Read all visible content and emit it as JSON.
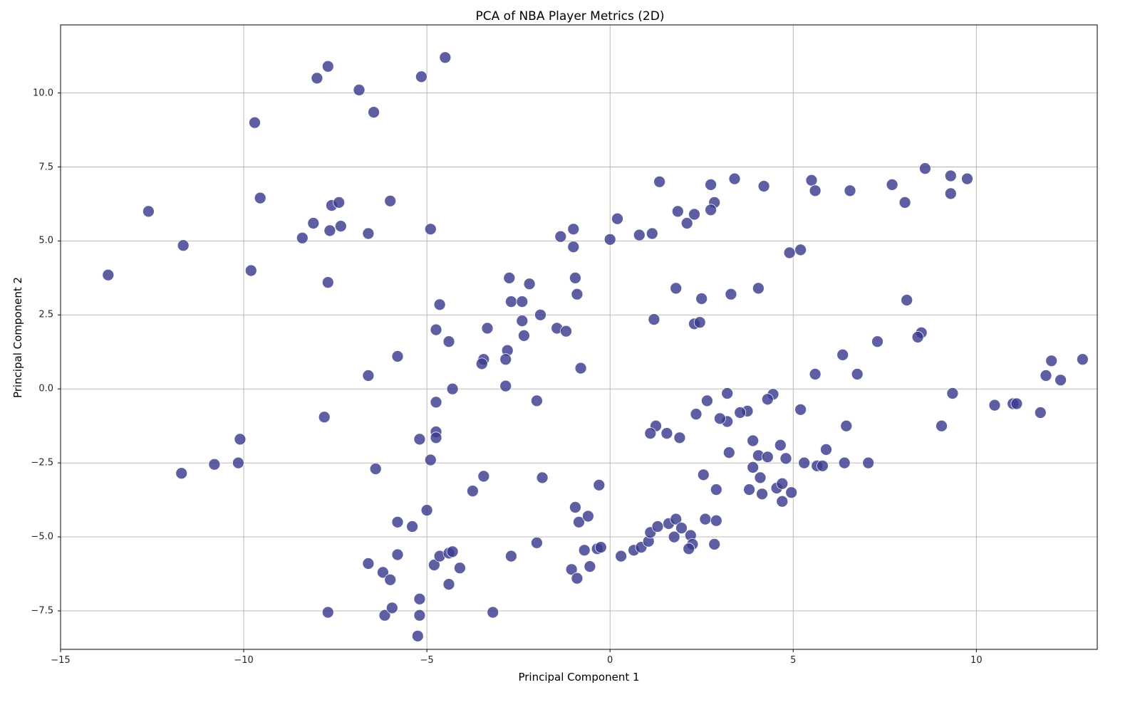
{
  "chart_data": {
    "type": "scatter",
    "title": "PCA of NBA Player Metrics (2D)",
    "xlabel": "Principal Component 1",
    "ylabel": "Principal Component 2",
    "xlim": [
      -15.0,
      13.3
    ],
    "ylim": [
      -8.8,
      12.3
    ],
    "grid": true,
    "legend": "none",
    "x_ticks": [
      {
        "value": -15,
        "label": "−15"
      },
      {
        "value": -10,
        "label": "−10"
      },
      {
        "value": -5,
        "label": "−5"
      },
      {
        "value": 0,
        "label": "0"
      },
      {
        "value": 5,
        "label": "5"
      },
      {
        "value": 10,
        "label": "10"
      }
    ],
    "y_ticks": [
      {
        "value": -7.5,
        "label": "−7.5"
      },
      {
        "value": -5.0,
        "label": "−5.0"
      },
      {
        "value": -2.5,
        "label": "−2.5"
      },
      {
        "value": 0.0,
        "label": "0.0"
      },
      {
        "value": 2.5,
        "label": "2.5"
      },
      {
        "value": 5.0,
        "label": "5.0"
      },
      {
        "value": 7.5,
        "label": "7.5"
      },
      {
        "value": 10.0,
        "label": "10.0"
      }
    ],
    "marker": {
      "shape": "circle",
      "radius_px": 8,
      "fill": "#3a3a8f",
      "fill_opacity": 0.82,
      "edge": "#ffffff",
      "edge_width": 0.8
    },
    "colors": {
      "grid": "#b2b2b2",
      "spine": "#1a1a1a",
      "background": "#ffffff"
    },
    "points": [
      [
        -7.7,
        10.9
      ],
      [
        -8.0,
        10.5
      ],
      [
        -6.85,
        10.1
      ],
      [
        -6.45,
        9.35
      ],
      [
        -9.7,
        9.0
      ],
      [
        -9.55,
        6.45
      ],
      [
        -12.6,
        6.0
      ],
      [
        -7.6,
        6.2
      ],
      [
        -7.4,
        6.3
      ],
      [
        -6.0,
        6.35
      ],
      [
        -8.4,
        5.1
      ],
      [
        -8.1,
        5.6
      ],
      [
        -7.65,
        5.35
      ],
      [
        -7.35,
        5.5
      ],
      [
        -6.6,
        5.25
      ],
      [
        -11.65,
        4.85
      ],
      [
        -13.7,
        3.85
      ],
      [
        -9.8,
        4.0
      ],
      [
        -7.7,
        3.6
      ],
      [
        -5.8,
        1.1
      ],
      [
        -6.6,
        0.45
      ],
      [
        -7.8,
        -0.95
      ],
      [
        -10.1,
        -1.7
      ],
      [
        -4.5,
        11.2
      ],
      [
        -5.15,
        10.55
      ],
      [
        -4.9,
        5.4
      ],
      [
        -1.0,
        5.4
      ],
      [
        0.2,
        5.75
      ],
      [
        1.35,
        7.0
      ],
      [
        2.75,
        6.9
      ],
      [
        3.4,
        7.1
      ],
      [
        2.85,
        6.3
      ],
      [
        1.85,
        6.0
      ],
      [
        2.3,
        5.9
      ],
      [
        2.75,
        6.05
      ],
      [
        2.1,
        5.6
      ],
      [
        4.2,
        6.85
      ],
      [
        5.5,
        7.05
      ],
      [
        5.6,
        6.7
      ],
      [
        6.55,
        6.7
      ],
      [
        7.7,
        6.9
      ],
      [
        8.05,
        6.3
      ],
      [
        8.6,
        7.45
      ],
      [
        9.3,
        7.2
      ],
      [
        9.3,
        6.6
      ],
      [
        9.75,
        7.1
      ],
      [
        -11.7,
        -2.85
      ],
      [
        -10.8,
        -2.55
      ],
      [
        -10.15,
        -2.5
      ],
      [
        -1.35,
        5.15
      ],
      [
        0.0,
        5.05
      ],
      [
        0.8,
        5.2
      ],
      [
        1.15,
        5.25
      ],
      [
        -1.0,
        4.8
      ],
      [
        -2.75,
        3.75
      ],
      [
        -2.2,
        3.55
      ],
      [
        -0.95,
        3.75
      ],
      [
        -0.9,
        3.2
      ],
      [
        -4.65,
        2.85
      ],
      [
        -2.7,
        2.95
      ],
      [
        -2.4,
        2.95
      ],
      [
        -1.9,
        2.5
      ],
      [
        -2.4,
        2.3
      ],
      [
        -4.75,
        2.0
      ],
      [
        -3.35,
        2.05
      ],
      [
        -1.45,
        2.05
      ],
      [
        -1.2,
        1.95
      ],
      [
        -2.35,
        1.8
      ],
      [
        -4.4,
        1.6
      ],
      [
        -2.8,
        1.3
      ],
      [
        -3.45,
        1.0
      ],
      [
        -3.5,
        0.85
      ],
      [
        -2.85,
        1.0
      ],
      [
        -0.8,
        0.7
      ],
      [
        -4.3,
        0.0
      ],
      [
        -2.85,
        0.1
      ],
      [
        -4.75,
        -0.45
      ],
      [
        -2.0,
        -0.4
      ],
      [
        1.2,
        2.35
      ],
      [
        1.8,
        3.4
      ],
      [
        2.3,
        2.2
      ],
      [
        2.45,
        2.25
      ],
      [
        2.5,
        3.05
      ],
      [
        3.3,
        3.2
      ],
      [
        4.9,
        4.6
      ],
      [
        5.2,
        4.7
      ],
      [
        4.05,
        3.4
      ],
      [
        8.1,
        3.0
      ],
      [
        8.5,
        1.9
      ],
      [
        8.4,
        1.75
      ],
      [
        7.3,
        1.6
      ],
      [
        6.35,
        1.15
      ],
      [
        5.6,
        0.5
      ],
      [
        6.75,
        0.5
      ],
      [
        12.05,
        0.95
      ],
      [
        12.9,
        1.0
      ],
      [
        11.9,
        0.45
      ],
      [
        12.3,
        0.3
      ],
      [
        4.45,
        -0.18
      ],
      [
        4.3,
        -0.35
      ],
      [
        5.2,
        -0.7
      ],
      [
        9.35,
        -0.15
      ],
      [
        6.45,
        -1.25
      ],
      [
        9.05,
        -1.25
      ],
      [
        10.5,
        -0.55
      ],
      [
        11.0,
        -0.5
      ],
      [
        11.1,
        -0.5
      ],
      [
        11.75,
        -0.8
      ],
      [
        3.2,
        -0.15
      ],
      [
        2.65,
        -0.4
      ],
      [
        3.75,
        -0.75
      ],
      [
        3.55,
        -0.8
      ],
      [
        2.35,
        -0.85
      ],
      [
        3.2,
        -1.1
      ],
      [
        3.0,
        -1.0
      ],
      [
        1.25,
        -1.25
      ],
      [
        1.1,
        -1.5
      ],
      [
        1.55,
        -1.5
      ],
      [
        1.9,
        -1.65
      ],
      [
        3.9,
        -1.75
      ],
      [
        -6.4,
        -2.7
      ],
      [
        -5.8,
        -4.5
      ],
      [
        -6.6,
        -5.9
      ],
      [
        -6.2,
        -6.2
      ],
      [
        -6.0,
        -6.45
      ],
      [
        -5.8,
        -5.6
      ],
      [
        -7.7,
        -7.55
      ],
      [
        -6.15,
        -7.65
      ],
      [
        -5.95,
        -7.4
      ],
      [
        -5.2,
        -1.7
      ],
      [
        -4.75,
        -1.45
      ],
      [
        -4.75,
        -1.65
      ],
      [
        -4.9,
        -2.4
      ],
      [
        -5.0,
        -4.1
      ],
      [
        -5.4,
        -4.65
      ],
      [
        -5.2,
        -7.1
      ],
      [
        -5.2,
        -7.65
      ],
      [
        -5.25,
        -8.35
      ],
      [
        -3.2,
        -7.55
      ],
      [
        -4.8,
        -5.95
      ],
      [
        -4.65,
        -5.65
      ],
      [
        -4.4,
        -5.55
      ],
      [
        -4.3,
        -5.5
      ],
      [
        -4.1,
        -6.05
      ],
      [
        -4.4,
        -6.6
      ],
      [
        -3.45,
        -2.95
      ],
      [
        -3.75,
        -3.45
      ],
      [
        -1.85,
        -3.0
      ],
      [
        -0.3,
        -3.25
      ],
      [
        -2.0,
        -5.2
      ],
      [
        -2.7,
        -5.65
      ],
      [
        -0.95,
        -4.0
      ],
      [
        -0.85,
        -4.5
      ],
      [
        -0.6,
        -4.3
      ],
      [
        -1.05,
        -6.1
      ],
      [
        -0.9,
        -6.4
      ],
      [
        -0.55,
        -6.0
      ],
      [
        -0.7,
        -5.45
      ],
      [
        -0.35,
        -5.4
      ],
      [
        -0.25,
        -5.35
      ],
      [
        0.3,
        -5.65
      ],
      [
        0.65,
        -5.45
      ],
      [
        0.85,
        -5.35
      ],
      [
        1.05,
        -5.15
      ],
      [
        1.1,
        -4.85
      ],
      [
        1.3,
        -4.65
      ],
      [
        1.6,
        -4.55
      ],
      [
        1.75,
        -5.0
      ],
      [
        1.8,
        -4.4
      ],
      [
        1.95,
        -4.7
      ],
      [
        2.2,
        -4.95
      ],
      [
        2.25,
        -5.25
      ],
      [
        2.15,
        -5.4
      ],
      [
        2.85,
        -5.25
      ],
      [
        2.6,
        -4.4
      ],
      [
        2.9,
        -4.45
      ],
      [
        3.25,
        -2.15
      ],
      [
        2.55,
        -2.9
      ],
      [
        2.9,
        -3.4
      ],
      [
        4.05,
        -2.25
      ],
      [
        4.3,
        -2.3
      ],
      [
        4.65,
        -1.9
      ],
      [
        4.8,
        -2.35
      ],
      [
        3.9,
        -2.65
      ],
      [
        4.1,
        -3.0
      ],
      [
        3.8,
        -3.4
      ],
      [
        4.15,
        -3.55
      ],
      [
        4.55,
        -3.35
      ],
      [
        4.7,
        -3.2
      ],
      [
        4.95,
        -3.5
      ],
      [
        4.7,
        -3.8
      ],
      [
        5.3,
        -2.5
      ],
      [
        5.65,
        -2.6
      ],
      [
        5.8,
        -2.6
      ],
      [
        5.9,
        -2.05
      ],
      [
        6.4,
        -2.5
      ],
      [
        7.05,
        -2.5
      ]
    ]
  }
}
